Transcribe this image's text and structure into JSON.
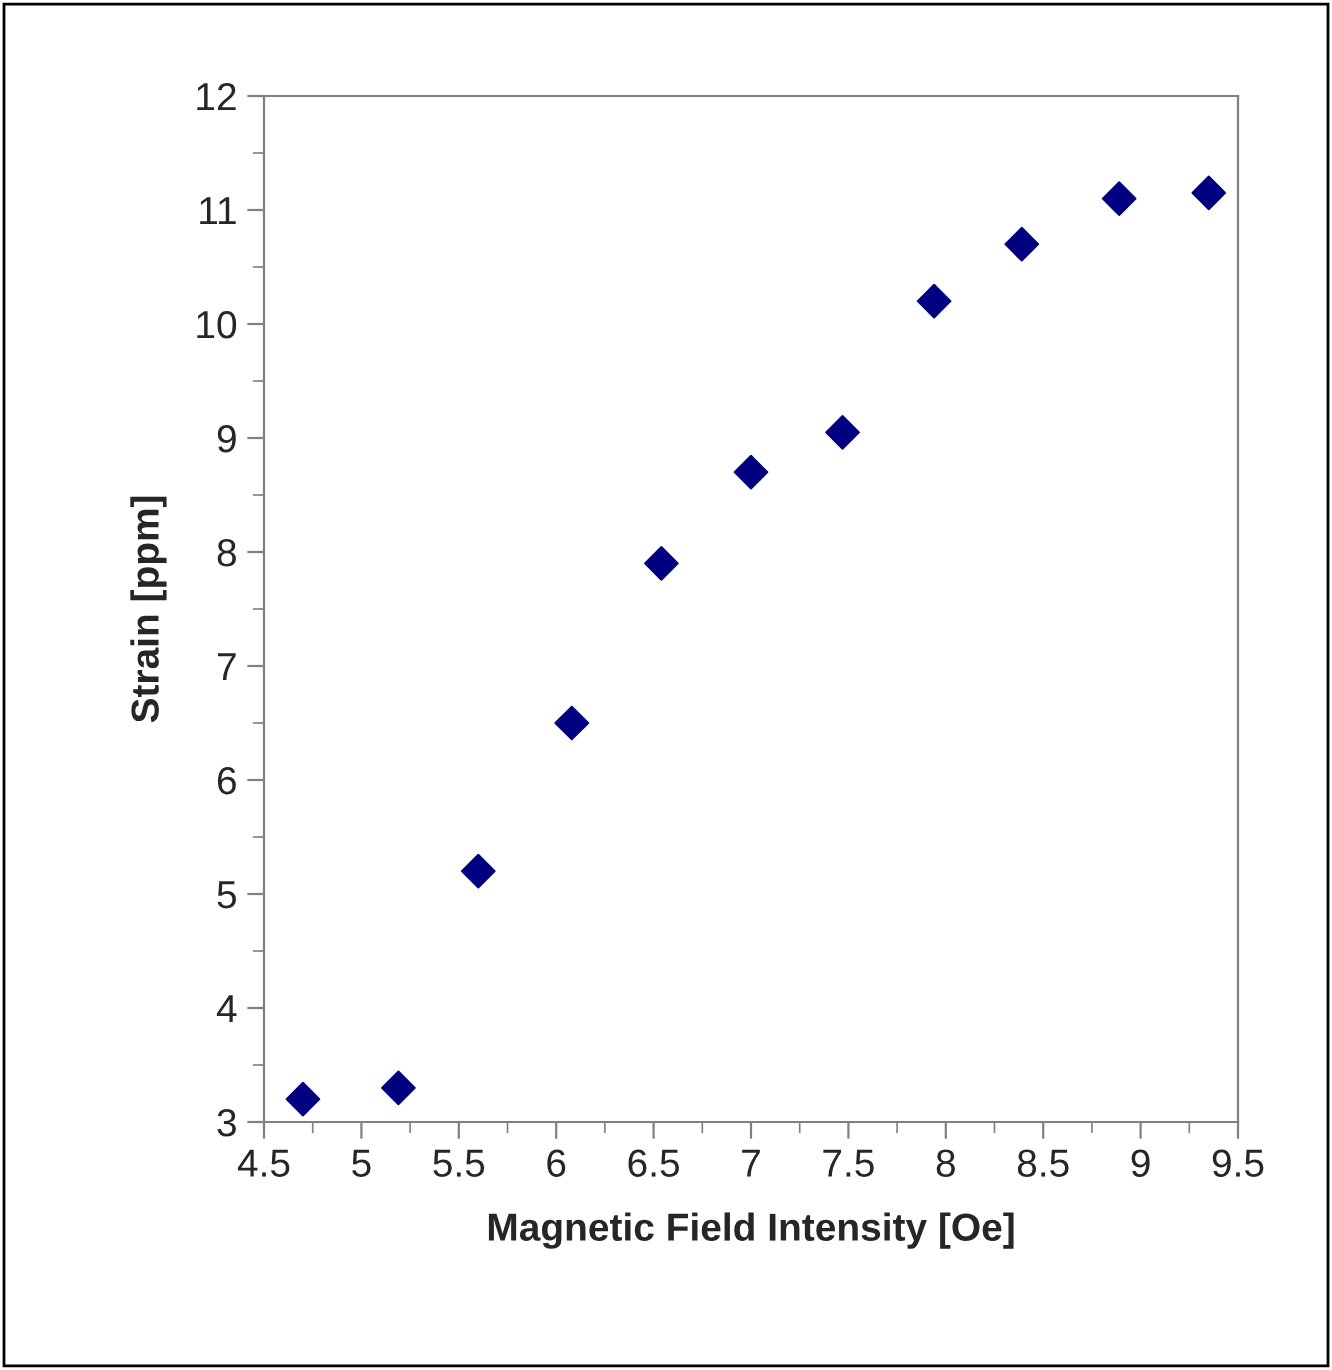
{
  "chart_data": {
    "type": "scatter",
    "xlabel": "Magnetic Field Intensity [Oe]",
    "ylabel": "Strain [ppm]",
    "x": [
      4.7,
      5.19,
      5.6,
      6.08,
      6.54,
      7.0,
      7.47,
      7.94,
      8.39,
      8.89,
      9.35
    ],
    "series": [
      {
        "color": "#000080",
        "values": [
          3.2,
          3.3,
          5.2,
          6.5,
          7.9,
          8.7,
          9.05,
          10.2,
          10.7,
          11.1,
          11.15
        ]
      }
    ],
    "xlim": [
      4.5,
      9.5
    ],
    "xticks": [
      4.5,
      5,
      5.5,
      6,
      6.5,
      7,
      7.5,
      8,
      8.5,
      9,
      9.5
    ],
    "ylim": [
      3,
      12
    ],
    "yticks": [
      3,
      4,
      5,
      6,
      7,
      8,
      9,
      10,
      11,
      12
    ],
    "marker": "diamond",
    "grid": false,
    "legend": false
  }
}
